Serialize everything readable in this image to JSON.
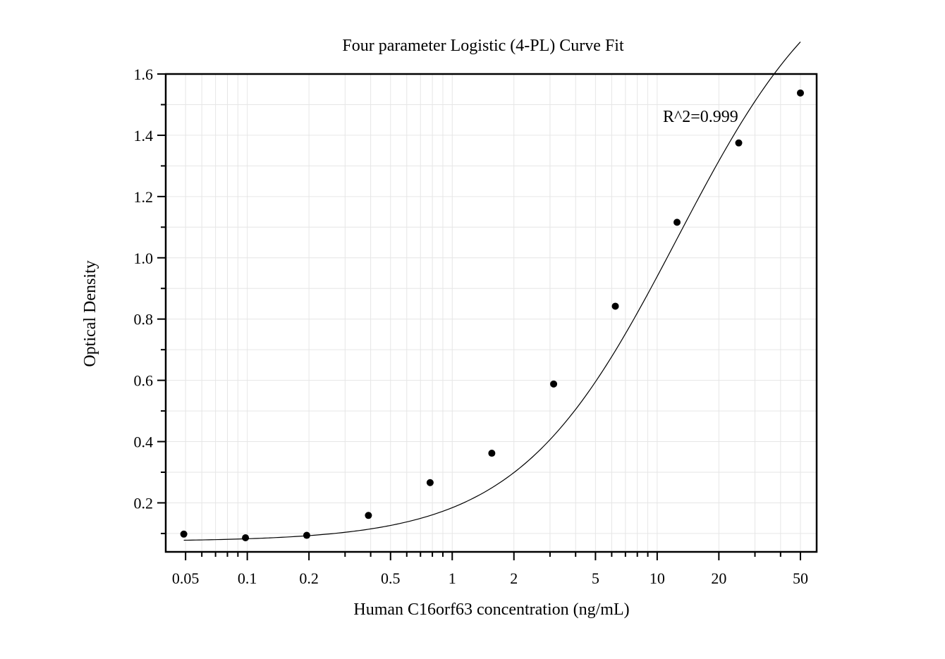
{
  "chart_data": {
    "type": "scatter",
    "title": "Four parameter Logistic (4-PL) Curve Fit",
    "xlabel": "Human C16orf63 concentration (ng/mL)",
    "ylabel": "Optical Density",
    "xscale": "log",
    "xlim": [
      0.04,
      60
    ],
    "ylim": [
      0.04,
      1.6
    ],
    "x_ticks": [
      0.05,
      0.1,
      0.2,
      0.5,
      1,
      2,
      5,
      10,
      20,
      50
    ],
    "x_tick_labels": [
      "0.05",
      "0.1",
      "0.2",
      "0.5",
      "1",
      "2",
      "5",
      "10",
      "20",
      "50"
    ],
    "y_ticks": [
      0.2,
      0.4,
      0.6,
      0.8,
      1.0,
      1.2,
      1.4,
      1.6
    ],
    "y_tick_labels": [
      "0.2",
      "0.4",
      "0.6",
      "0.8",
      "1.0",
      "1.2",
      "1.4",
      "1.6"
    ],
    "grid": true,
    "legend": "none",
    "annotation": "R^2=0.999",
    "points": {
      "x": [
        0.049,
        0.098,
        0.195,
        0.39,
        0.78,
        1.56,
        3.125,
        6.25,
        12.5,
        25,
        50
      ],
      "y": [
        0.098,
        0.086,
        0.094,
        0.159,
        0.266,
        0.362,
        0.588,
        0.842,
        1.116,
        1.375,
        1.538
      ]
    },
    "fit": {
      "model": "4PL",
      "x_range": [
        0.049,
        50
      ]
    },
    "colors": {
      "points": "#000000",
      "curve": "#000000",
      "grid": "#e6e6e6",
      "axes": "#000000"
    }
  }
}
